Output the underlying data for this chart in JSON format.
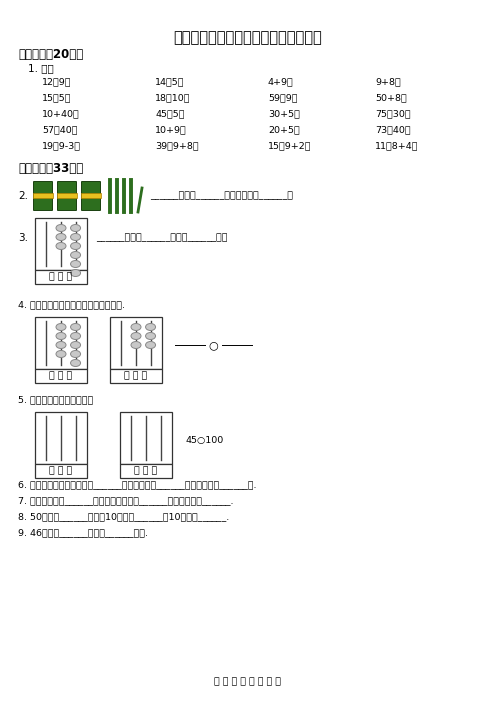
{
  "title": "人教版一年级下学期期中考试数学试题",
  "bg_color": "#ffffff",
  "text_color": "#000000",
  "section1_header": "一、口算（20分）",
  "section1_sub": "1. 口算",
  "calc_rows": [
    [
      "12－9＝",
      "14－5＝",
      "4+9＝",
      "9+8＝"
    ],
    [
      "15－5＝",
      "18－10＝",
      "59－9＝",
      "50+8＝"
    ],
    [
      "10+40＝",
      "45－5＝",
      "30+5＝",
      "75－30＝"
    ],
    [
      "57－40＝",
      "10+9＝",
      "20+5＝",
      "73－40＝"
    ],
    [
      "19－9-3＝",
      "39－9+8＝",
      "15－9+2＝",
      "11－8+4＝"
    ]
  ],
  "section2_header": "二、填空（33分）",
  "q2_prefix": "2.",
  "q2_text": "______个十和______个一合起来是______。",
  "q3_prefix": "3.",
  "q3_text": "______里面有______个十和______一。",
  "q3_label": "百 十 个",
  "q4_text": "4. 根据计数器先写出得数，再比较大小.",
  "q5_text": "5. 在计数器上先画出珠子。",
  "q5_label": "45○100",
  "q6_text": "6. 一个数从右边起第一位是______位，第二位是______位，第三位是______位.",
  "q7_text": "7. 最大的两位是______，最大的一位数是______，它们的差是______.",
  "q8_text": "8. 50里面有______个十，10个一是______，10个十是______.",
  "q9_text": "9. 46里面有______个十和______个一.",
  "footer": "精 品 数 学 期 中 测 试"
}
